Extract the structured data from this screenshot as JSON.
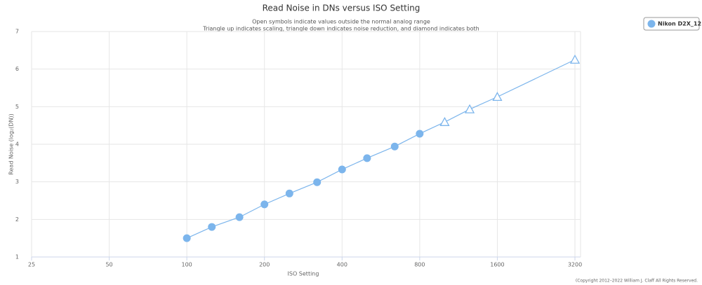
{
  "chart_data": {
    "type": "line",
    "title": "Read Noise in DNs versus ISO Setting",
    "subtitle": [
      "Open symbols indicate values outside the normal analog range",
      "Triangle up indicates scaling, triangle down indicates noise reduction, and diamond indicates both"
    ],
    "x_label": "ISO Setting",
    "y_label": "Read Noise (log₂(DN))",
    "credits": "(Copyright 2012–2022 William J. Claff All Rights Reserved.",
    "x": [
      100,
      125,
      160,
      200,
      250,
      320,
      400,
      500,
      640,
      800,
      1000,
      1250,
      1600,
      3200
    ],
    "x_scale": "log",
    "xlim": [
      25,
      3200
    ],
    "xticks": [
      25,
      50,
      100,
      200,
      400,
      800,
      1600,
      3200
    ],
    "ylim": [
      1,
      7
    ],
    "yticks": [
      1,
      2,
      3,
      4,
      5,
      6,
      7
    ],
    "grid": true,
    "legend": "top-right",
    "series": [
      {
        "name": "Nikon D2X_12",
        "color": "#7cb5ec",
        "values": [
          1.5,
          1.8,
          2.06,
          2.4,
          2.69,
          2.99,
          3.33,
          3.63,
          3.94,
          4.28,
          4.59,
          4.93,
          5.26,
          6.25
        ],
        "markers": [
          "circle",
          "circle",
          "circle",
          "circle",
          "circle",
          "circle",
          "circle",
          "circle",
          "circle",
          "circle",
          "triangle-up",
          "triangle-up",
          "triangle-up",
          "triangle-up"
        ]
      }
    ]
  }
}
